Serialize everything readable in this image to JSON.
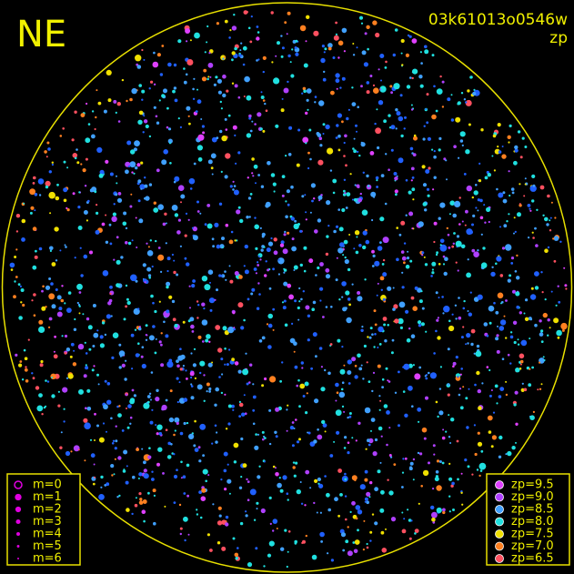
{
  "header": {
    "direction": "NE",
    "frame": "03k61013o0546w",
    "mode": "zp"
  },
  "magnitude_legend": [
    "m=0",
    "m=1",
    "m=2",
    "m=3",
    "m=4",
    "m=5",
    "m=6"
  ],
  "zp_legend": [
    {
      "label": "zp=9.5",
      "color": "#e040ff"
    },
    {
      "label": "zp=9.0",
      "color": "#b040ff"
    },
    {
      "label": "zp=8.5",
      "color": "#40a0ff"
    },
    {
      "label": "zp=8.0",
      "color": "#20e0e0"
    },
    {
      "label": "zp=7.5",
      "color": "#f0e000"
    },
    {
      "label": "zp=7.0",
      "color": "#ff8020"
    },
    {
      "label": "zp=6.5",
      "color": "#ff5060"
    }
  ]
}
